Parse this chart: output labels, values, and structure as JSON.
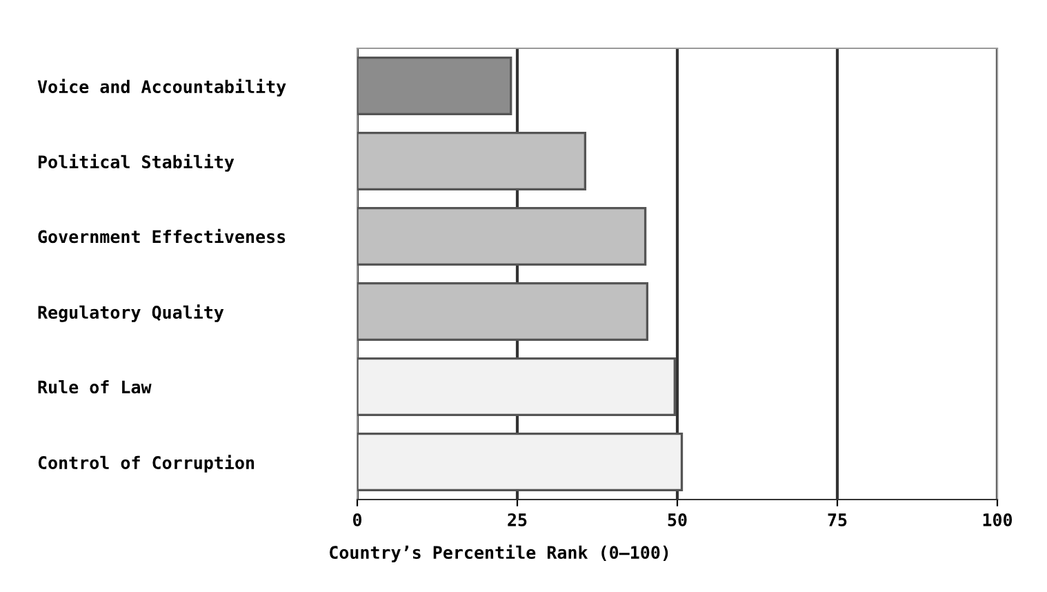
{
  "chart_data": {
    "type": "bar",
    "orientation": "horizontal",
    "xlabel": "Country’s Percentile Rank (0–100)",
    "categories": [
      "Voice and Accountability",
      "Political Stability",
      "Government Effectiveness",
      "Regulatory Quality",
      "Rule of Law",
      "Control of Corruption"
    ],
    "values": [
      24,
      35.6,
      45.0,
      45.3,
      49.6,
      50.7
    ],
    "colors": [
      "#8c8c8c",
      "#c0c0c0",
      "#c0c0c0",
      "#c0c0c0",
      "#f2f2f2",
      "#f2f2f2"
    ],
    "xlim": [
      0,
      100
    ],
    "xticks": [
      0,
      25,
      50,
      75,
      100
    ],
    "grid": "x",
    "legend": false
  }
}
